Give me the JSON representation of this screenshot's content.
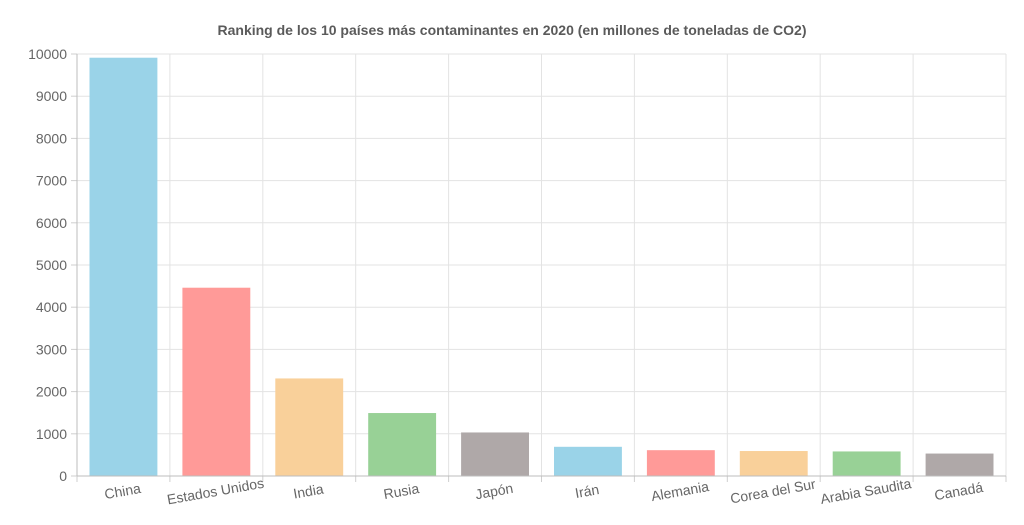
{
  "chart_data": {
    "type": "bar",
    "title": "Ranking de los 10 países más contaminantes en 2020 (en millones de toneladas de CO2)",
    "xlabel": "",
    "ylabel": "",
    "ylim": [
      0,
      10000
    ],
    "yticks": [
      0,
      1000,
      2000,
      3000,
      4000,
      5000,
      6000,
      7000,
      8000,
      9000,
      10000
    ],
    "categories": [
      "China",
      "Estados Unidos",
      "India",
      "Rusia",
      "Japón",
      "Irán",
      "Alemania",
      "Corea del Sur",
      "Arabia Saudita",
      "Canadá"
    ],
    "values": [
      9900,
      4450,
      2300,
      1480,
      1020,
      680,
      600,
      580,
      570,
      520
    ],
    "bar_colors": [
      "#9ad3e8",
      "#ff9a98",
      "#f9d09a",
      "#98d196",
      "#afa8a8",
      "#9ad3e8",
      "#ff9a98",
      "#f9d09a",
      "#98d196",
      "#afa8a8"
    ],
    "grid": true,
    "legend": "none"
  }
}
